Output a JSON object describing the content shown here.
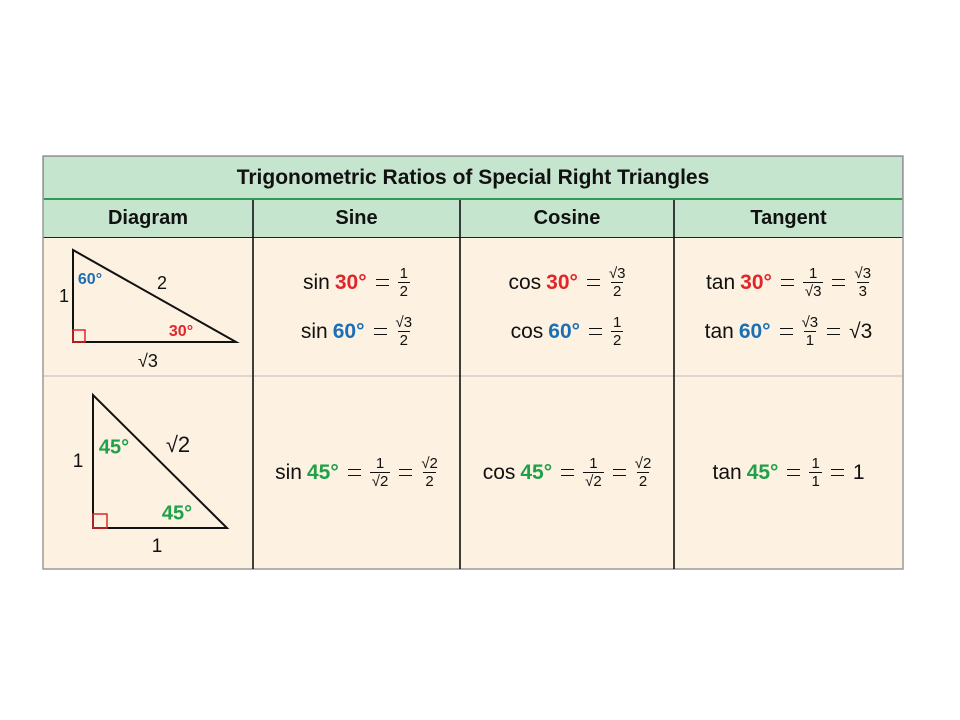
{
  "table": {
    "title": "Trigonometric Ratios of Special Right Triangles",
    "headers": [
      "Diagram",
      "Sine",
      "Cosine",
      "Tangent"
    ],
    "rows": [
      {
        "diagram": {
          "labels": [
            {
              "text": "60°",
              "color": "#1b6fb5"
            },
            {
              "text": "2",
              "color": "#111111"
            },
            {
              "text": "1",
              "color": "#111111"
            },
            {
              "text": "30°",
              "color": "#e0262a"
            },
            {
              "text": "√3",
              "color": "#111111"
            }
          ]
        },
        "cells": [
          [
            {
              "func": "sin",
              "angle": "30°",
              "color": "#e0262a",
              "results": [
                {
                  "num": "1",
                  "den": "2"
                }
              ]
            },
            {
              "func": "sin",
              "angle": "60°",
              "color": "#1b6fb5",
              "results": [
                {
                  "num": "√3",
                  "den": "2"
                }
              ]
            }
          ],
          [
            {
              "func": "cos",
              "angle": "30°",
              "color": "#e0262a",
              "results": [
                {
                  "num": "√3",
                  "den": "2"
                }
              ]
            },
            {
              "func": "cos",
              "angle": "60°",
              "color": "#1b6fb5",
              "results": [
                {
                  "num": "1",
                  "den": "2"
                }
              ]
            }
          ],
          [
            {
              "func": "tan",
              "angle": "30°",
              "color": "#e0262a",
              "results": [
                {
                  "num": "1",
                  "den": "√3"
                },
                {
                  "num": "√3",
                  "den": "3"
                }
              ]
            },
            {
              "func": "tan",
              "angle": "60°",
              "color": "#1b6fb5",
              "results": [
                {
                  "num": "√3",
                  "den": "1"
                },
                {
                  "text": "√3"
                }
              ]
            }
          ]
        ]
      },
      {
        "diagram": {
          "labels": [
            {
              "text": "45°",
              "color": "#1fa04a"
            },
            {
              "text": "√2",
              "color": "#111111"
            },
            {
              "text": "1",
              "color": "#111111"
            },
            {
              "text": "45°",
              "color": "#1fa04a"
            },
            {
              "text": "1",
              "color": "#111111"
            }
          ]
        },
        "cells": [
          [
            {
              "func": "sin",
              "angle": "45°",
              "color": "#1fa04a",
              "results": [
                {
                  "num": "1",
                  "den": "√2"
                },
                {
                  "num": "√2",
                  "den": "2"
                }
              ]
            }
          ],
          [
            {
              "func": "cos",
              "angle": "45°",
              "color": "#1fa04a",
              "results": [
                {
                  "num": "1",
                  "den": "√2"
                },
                {
                  "num": "√2",
                  "den": "2"
                }
              ]
            }
          ],
          [
            {
              "func": "tan",
              "angle": "45°",
              "color": "#1fa04a",
              "results": [
                {
                  "num": "1",
                  "den": "1"
                },
                {
                  "text": "1"
                }
              ]
            }
          ]
        ]
      }
    ]
  }
}
